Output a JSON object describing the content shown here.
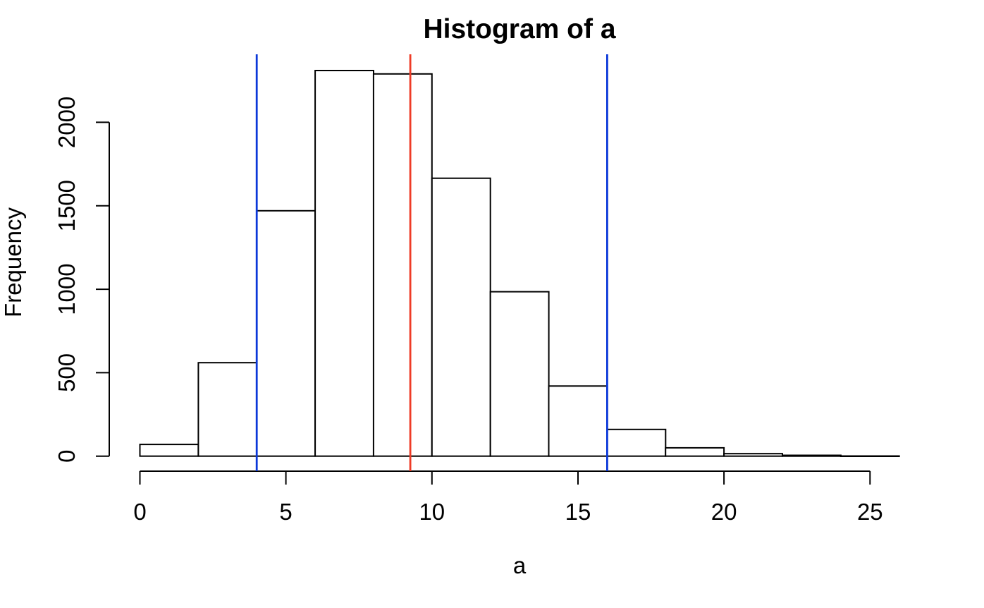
{
  "chart_data": {
    "type": "bar",
    "subtype": "histogram",
    "title": "Histogram of a",
    "xlabel": "a",
    "ylabel": "Frequency",
    "bin_edges": [
      0,
      2,
      4,
      6,
      8,
      10,
      12,
      14,
      16,
      18,
      20,
      22,
      24,
      26
    ],
    "counts": [
      70,
      560,
      1470,
      2310,
      2290,
      1665,
      985,
      420,
      160,
      50,
      15,
      5,
      1
    ],
    "x_ticks": [
      0,
      5,
      10,
      15,
      20,
      25
    ],
    "y_ticks": [
      0,
      500,
      1000,
      1500,
      2000
    ],
    "xlim": [
      0,
      26
    ],
    "ylim": [
      0,
      2405
    ],
    "grid": false,
    "legend": "none",
    "bar_fill": "#ffffff",
    "bar_stroke": "#000000",
    "axis_color": "#000000",
    "reference_lines": [
      {
        "x": 4,
        "color": "#0b38d9",
        "name": "interval-lower-line"
      },
      {
        "x": 9.26,
        "color": "#ee3b26",
        "name": "mean-line"
      },
      {
        "x": 16,
        "color": "#0b38d9",
        "name": "interval-upper-line"
      }
    ]
  }
}
